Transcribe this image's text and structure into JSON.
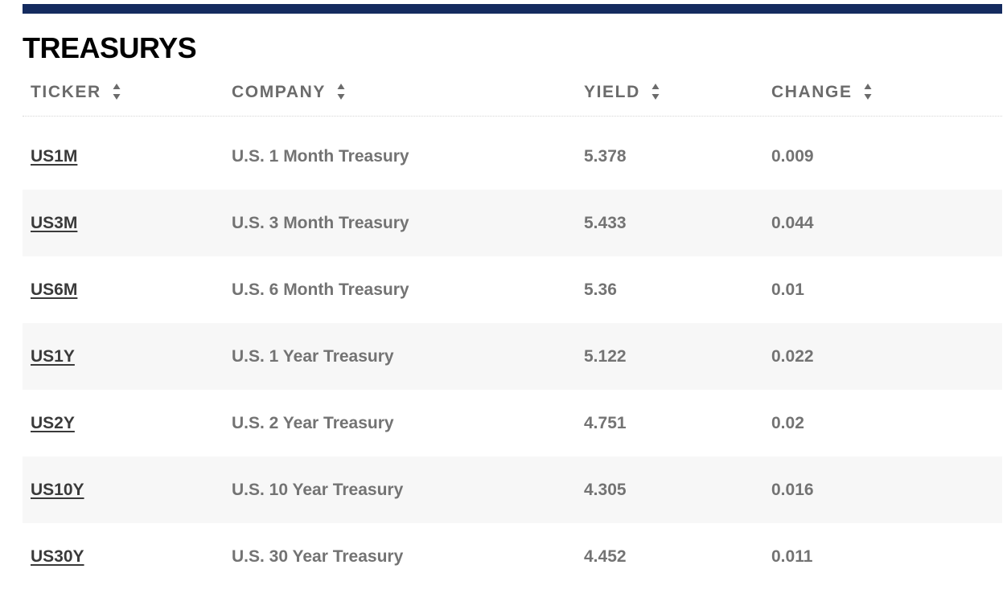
{
  "section_title": "TREASURYS",
  "columns": [
    {
      "label": "TICKER"
    },
    {
      "label": "COMPANY"
    },
    {
      "label": "YIELD"
    },
    {
      "label": "CHANGE"
    }
  ],
  "colors": {
    "top_bar": "#142b5f",
    "header_text": "#6b6b6b",
    "cell_text": "#737373",
    "link_text": "#3a3a3a",
    "alt_row_bg": "#f7f7f7"
  },
  "icons": {
    "sort": "sort-up-down-icon"
  },
  "rows": [
    {
      "ticker": "US1M",
      "company": "U.S. 1 Month Treasury",
      "yield": "5.378",
      "change": "0.009"
    },
    {
      "ticker": "US3M",
      "company": "U.S. 3 Month Treasury",
      "yield": "5.433",
      "change": "0.044"
    },
    {
      "ticker": "US6M",
      "company": "U.S. 6 Month Treasury",
      "yield": "5.36",
      "change": "0.01"
    },
    {
      "ticker": "US1Y",
      "company": "U.S. 1 Year Treasury",
      "yield": "5.122",
      "change": "0.022"
    },
    {
      "ticker": "US2Y",
      "company": "U.S. 2 Year Treasury",
      "yield": "4.751",
      "change": "0.02"
    },
    {
      "ticker": "US10Y",
      "company": "U.S. 10 Year Treasury",
      "yield": "4.305",
      "change": "0.016"
    },
    {
      "ticker": "US30Y",
      "company": "U.S. 30 Year Treasury",
      "yield": "4.452",
      "change": "0.011"
    }
  ]
}
